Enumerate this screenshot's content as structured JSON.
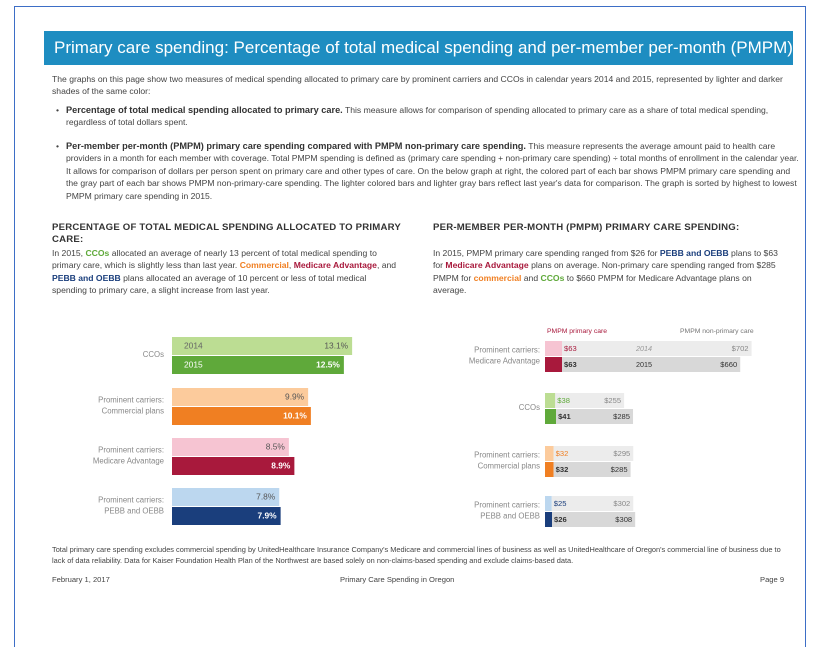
{
  "header": {
    "title": "Primary care spending: Percentage of total medical spending and per-member per-month (PMPM)"
  },
  "intro": "The graphs on this page show two measures of medical spending allocated to primary care by prominent carriers and CCOs in calendar years 2014 and 2015, represented by lighter and darker shades of the same color:",
  "bullets": [
    {
      "segments": [
        {
          "text": "Percentage of total medical spending allocated to primary care.",
          "bold": true
        },
        {
          "text": " This measure allows for comparison of spending allocated to primary care as a share of total medical spending, regardless of total dollars spent."
        }
      ]
    },
    {
      "segments": [
        {
          "text": "Per-member per-month (PMPM) primary care spending compared with PMPM non-primary care spending.",
          "bold": true
        },
        {
          "text": " This measure represents the average amount paid to health care providers in a month for each member with coverage. Total PMPM spending is defined as (primary care spending + non-primary care spending) ÷ total months of enrollment in the calendar year. It allows for comparison of dollars per person spent on primary care and other types of care. On the below graph at right, the colored part of each bar shows PMPM primary care spending and the gray part of each bar shows PMPM non-primary-care spending. The lighter colored bars and lighter gray bars reflect last year's data for comparison. The graph is sorted by highest to lowest PMPM primary care spending in 2015."
        }
      ]
    }
  ],
  "left": {
    "heading": "PERCENTAGE OF TOTAL MEDICAL SPENDING ALLOCATED TO PRIMARY CARE:",
    "segments": [
      {
        "text": "In 2015, "
      },
      {
        "text": "CCOs",
        "bold": true,
        "color": "#5fa93a"
      },
      {
        "text": " allocated an average of nearly 13 percent of total medical spending to primary care, which is slightly less than last year. "
      },
      {
        "text": "Commercial",
        "bold": true,
        "color": "#f07f22"
      },
      {
        "text": ", "
      },
      {
        "text": "Medicare Advantage",
        "bold": true,
        "color": "#a8193c"
      },
      {
        "text": ", and "
      },
      {
        "text": "PEBB and OEBB",
        "bold": true,
        "color": "#1a3e7c"
      },
      {
        "text": " plans allocated an average of 10 percent or less of total medical spending to primary care, a slight increase from last year."
      }
    ],
    "chart": {
      "type": "bar",
      "years": [
        "2014",
        "2015"
      ],
      "groups": [
        {
          "label_lines": [
            "CCOs"
          ],
          "values": [
            13.1,
            12.5
          ],
          "value_labels": [
            "13.1%",
            "12.5%"
          ],
          "colors": [
            "#bcdd93",
            "#5fa93a"
          ]
        },
        {
          "label_lines": [
            "Prominent carriers:",
            "Commercial plans"
          ],
          "values": [
            9.9,
            10.1
          ],
          "value_labels": [
            "9.9%",
            "10.1%"
          ],
          "colors": [
            "#fccb9c",
            "#f07f22"
          ]
        },
        {
          "label_lines": [
            "Prominent carriers:",
            "Medicare Advantage"
          ],
          "values": [
            8.5,
            8.9
          ],
          "value_labels": [
            "8.5%",
            "8.9%"
          ],
          "colors": [
            "#f6c4d2",
            "#a8193c"
          ]
        },
        {
          "label_lines": [
            "Prominent carriers:",
            "PEBB and OEBB"
          ],
          "values": [
            7.8,
            7.9
          ],
          "value_labels": [
            "7.8%",
            "7.9%"
          ],
          "colors": [
            "#bcd7ef",
            "#1a3e7c"
          ]
        }
      ]
    }
  },
  "right": {
    "heading": "PER-MEMBER PER-MONTH (PMPM) PRIMARY CARE SPENDING:",
    "segments": [
      {
        "text": "In 2015, PMPM primary care spending ranged from $26 for "
      },
      {
        "text": "PEBB and OEBB",
        "bold": true,
        "color": "#1a3e7c"
      },
      {
        "text": " plans to $63 for "
      },
      {
        "text": "Medicare Advantage",
        "bold": true,
        "color": "#a8193c"
      },
      {
        "text": " plans on average. Non-primary care spending ranged from $285 PMPM for "
      },
      {
        "text": "commercial",
        "bold": true,
        "color": "#f07f22"
      },
      {
        "text": " and "
      },
      {
        "text": "CCOs",
        "bold": true,
        "color": "#5fa93a"
      },
      {
        "text": " to $660 PMPM for Medicare Advantage plans on average."
      }
    ],
    "chart": {
      "type": "stacked-bar",
      "legend": [
        "PMPM primary care",
        "PMPM non-primary care"
      ],
      "years": [
        "2014",
        "2015"
      ],
      "gray_colors": [
        "#ececec",
        "#d8d8d8"
      ],
      "groups": [
        {
          "label_lines": [
            "Prominent carriers:",
            "Medicare Advantage"
          ],
          "primary": [
            63,
            63
          ],
          "primary_labels": [
            "$63",
            "$63"
          ],
          "non_primary": [
            702,
            660
          ],
          "non_primary_labels": [
            "$702",
            "$660"
          ],
          "colors": [
            "#f6c4d2",
            "#a8193c"
          ]
        },
        {
          "label_lines": [
            "CCOs"
          ],
          "primary": [
            38,
            41
          ],
          "primary_labels": [
            "$38",
            "$41"
          ],
          "non_primary": [
            255,
            285
          ],
          "non_primary_labels": [
            "$255",
            "$285"
          ],
          "colors": [
            "#bcdd93",
            "#5fa93a"
          ]
        },
        {
          "label_lines": [
            "Prominent carriers:",
            "Commercial plans"
          ],
          "primary": [
            32,
            32
          ],
          "primary_labels": [
            "$32",
            "$32"
          ],
          "non_primary": [
            295,
            285
          ],
          "non_primary_labels": [
            "$295",
            "$285"
          ],
          "colors": [
            "#fccb9c",
            "#f07f22"
          ]
        },
        {
          "label_lines": [
            "Prominent carriers:",
            "PEBB and OEBB"
          ],
          "primary": [
            25,
            26
          ],
          "primary_labels": [
            "$25",
            "$26"
          ],
          "non_primary": [
            302,
            308
          ],
          "non_primary_labels": [
            "$302",
            "$308"
          ],
          "colors": [
            "#bcd7ef",
            "#1a3e7c"
          ]
        }
      ]
    }
  },
  "footnote": "Total primary care spending excludes commercial spending by UnitedHealthcare Insurance Company's Medicare and commercial lines of business as well as UnitedHealthcare of Oregon's commercial line of business due to lack of data reliability. Data for Kaiser Foundation Health Plan of the Northwest are based solely on non-claims-based spending and exclude claims-based data.",
  "footer": {
    "date": "February 1, 2017",
    "center": "Primary Care Spending in Oregon",
    "page": "Page 9"
  }
}
